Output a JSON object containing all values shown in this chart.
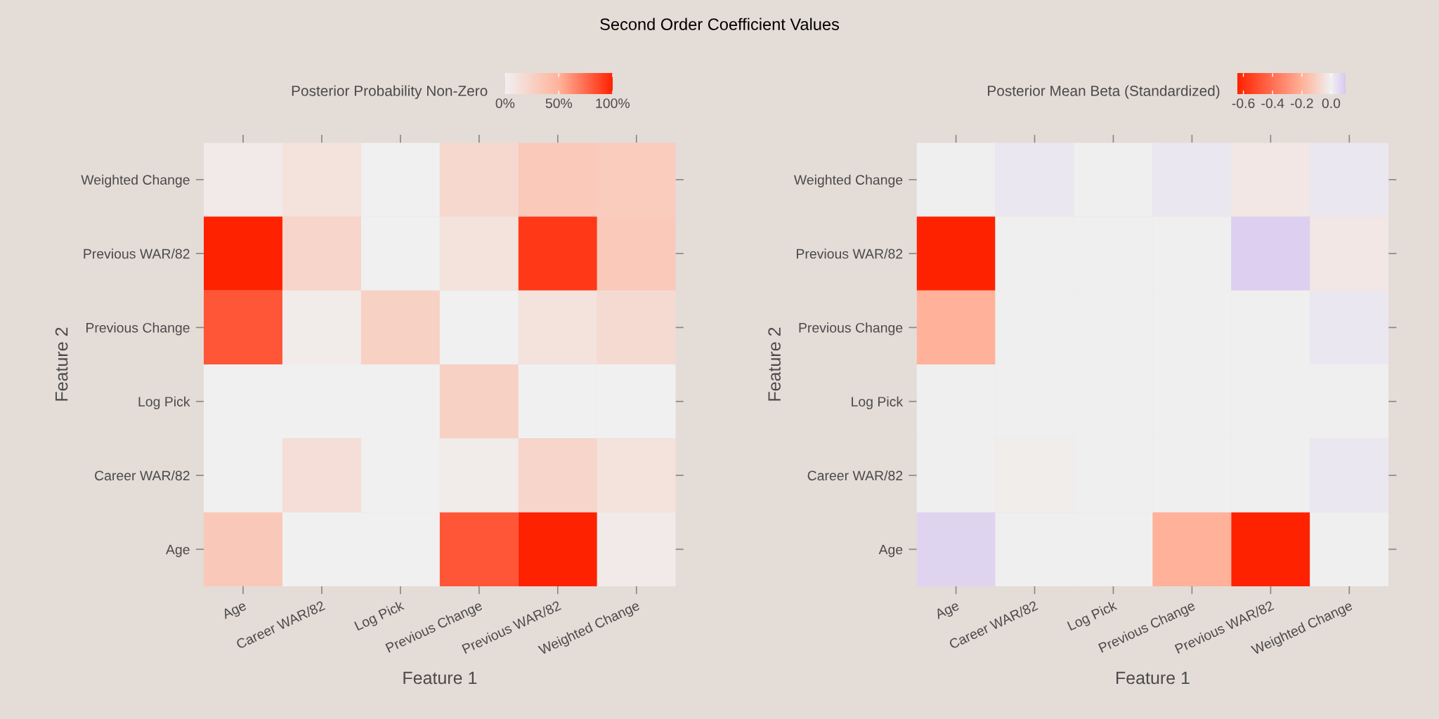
{
  "chart_data": [
    {
      "type": "heatmap",
      "title": "Second Order Coefficient Values",
      "xlabel": "Feature 1",
      "ylabel": "Feature 2",
      "clabel": "Posterior Probability Non-Zero",
      "categories": [
        "Age",
        "Career WAR/82",
        "Log Pick",
        "Previous Change",
        "Previous WAR/82",
        "Weighted Change"
      ],
      "y_categories": [
        "Weighted Change",
        "Previous WAR/82",
        "Previous Change",
        "Log Pick",
        "Career WAR/82",
        "Age"
      ],
      "cells": [
        [
          5,
          12,
          0,
          20,
          32,
          30
        ],
        [
          100,
          22,
          0,
          12,
          92,
          32
        ],
        [
          82,
          4,
          25,
          0,
          12,
          18
        ],
        [
          0,
          0,
          0,
          25,
          0,
          0
        ],
        [
          0,
          15,
          0,
          4,
          22,
          12
        ],
        [
          33,
          0,
          0,
          82,
          100,
          5
        ]
      ],
      "clim": [
        0,
        100
      ],
      "cticks": [
        {
          "value": 0,
          "label": "0%"
        },
        {
          "value": 50,
          "label": "50%"
        },
        {
          "value": 100,
          "label": "100%"
        }
      ],
      "grid": false
    },
    {
      "type": "heatmap",
      "xlabel": "Feature 1",
      "ylabel": "Feature 2",
      "clabel": "Posterior Mean Beta (Standardized)",
      "categories": [
        "Age",
        "Career WAR/82",
        "Log Pick",
        "Previous Change",
        "Previous WAR/82",
        "Weighted Change"
      ],
      "y_categories": [
        "Weighted Change",
        "Previous WAR/82",
        "Previous Change",
        "Log Pick",
        "Career WAR/82",
        "Age"
      ],
      "cells": [
        [
          0,
          0.02,
          0,
          0.02,
          -0.03,
          0.02
        ],
        [
          -0.64,
          0,
          0,
          0,
          0.08,
          -0.03
        ],
        [
          -0.2,
          0,
          0,
          0,
          0,
          0.02
        ],
        [
          0,
          0,
          0,
          0,
          0,
          0
        ],
        [
          0,
          -0.01,
          0,
          0,
          0,
          0.02
        ],
        [
          0.07,
          0,
          0,
          -0.2,
          -0.64,
          0
        ]
      ],
      "clim": [
        -0.64,
        0.1
      ],
      "cticks": [
        {
          "value": -0.6,
          "label": "-0.6"
        },
        {
          "value": -0.4,
          "label": "-0.4"
        },
        {
          "value": -0.2,
          "label": "-0.2"
        },
        {
          "value": 0,
          "label": "0.0"
        }
      ],
      "grid": false
    }
  ]
}
